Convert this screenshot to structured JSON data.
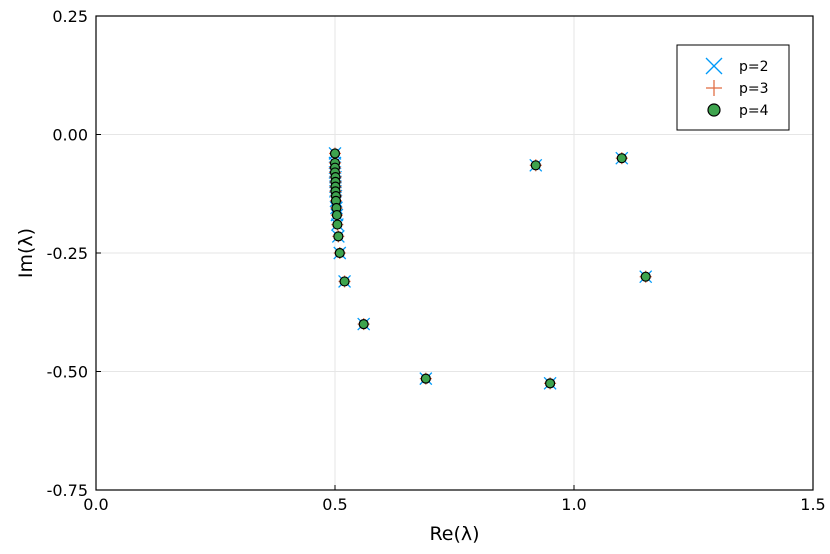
{
  "chart_data": {
    "type": "scatter",
    "title": "",
    "xlabel": "Re(λ)",
    "ylabel": "Im(λ)",
    "xlim": [
      0.0,
      1.5
    ],
    "ylim": [
      -0.75,
      0.25
    ],
    "x_ticks": [
      0.0,
      0.5,
      1.0,
      1.5
    ],
    "x_tick_labels": [
      "0.0",
      "0.5",
      "1.0",
      "1.5"
    ],
    "y_ticks": [
      0.25,
      0.0,
      -0.25,
      -0.5,
      -0.75
    ],
    "y_tick_labels": [
      "0.25",
      "0.00",
      "-0.25",
      "-0.50",
      "-0.75"
    ],
    "grid": true,
    "legend_position": "top-right",
    "series": [
      {
        "name": "p=2",
        "marker": "x",
        "color": "#009af9",
        "points": [
          [
            0.5,
            -0.04
          ],
          [
            0.5,
            -0.06
          ],
          [
            0.5,
            -0.07
          ],
          [
            0.5,
            -0.08
          ],
          [
            0.501,
            -0.09
          ],
          [
            0.501,
            -0.1
          ],
          [
            0.501,
            -0.11
          ],
          [
            0.501,
            -0.12
          ],
          [
            0.502,
            -0.13
          ],
          [
            0.502,
            -0.14
          ],
          [
            0.503,
            -0.155
          ],
          [
            0.504,
            -0.17
          ],
          [
            0.505,
            -0.19
          ],
          [
            0.507,
            -0.215
          ],
          [
            0.51,
            -0.25
          ],
          [
            0.52,
            -0.31
          ],
          [
            0.56,
            -0.4
          ],
          [
            0.69,
            -0.515
          ],
          [
            0.92,
            -0.065
          ],
          [
            0.95,
            -0.525
          ],
          [
            1.1,
            -0.05
          ],
          [
            1.15,
            -0.3
          ]
        ]
      },
      {
        "name": "p=3",
        "marker": "+",
        "color": "#e26f46",
        "points": [
          [
            0.5,
            -0.04
          ],
          [
            0.5,
            -0.06
          ],
          [
            0.5,
            -0.07
          ],
          [
            0.5,
            -0.08
          ],
          [
            0.501,
            -0.09
          ],
          [
            0.501,
            -0.1
          ],
          [
            0.501,
            -0.11
          ],
          [
            0.501,
            -0.12
          ],
          [
            0.502,
            -0.13
          ],
          [
            0.502,
            -0.14
          ],
          [
            0.503,
            -0.155
          ],
          [
            0.504,
            -0.17
          ],
          [
            0.505,
            -0.19
          ],
          [
            0.507,
            -0.215
          ],
          [
            0.51,
            -0.25
          ],
          [
            0.52,
            -0.31
          ],
          [
            0.56,
            -0.4
          ],
          [
            0.69,
            -0.515
          ],
          [
            0.92,
            -0.065
          ],
          [
            0.95,
            -0.525
          ],
          [
            1.1,
            -0.05
          ],
          [
            1.15,
            -0.3
          ]
        ]
      },
      {
        "name": "p=4",
        "marker": "circle",
        "color": "#3ea44e",
        "points": [
          [
            0.5,
            -0.04
          ],
          [
            0.5,
            -0.06
          ],
          [
            0.5,
            -0.07
          ],
          [
            0.5,
            -0.08
          ],
          [
            0.501,
            -0.09
          ],
          [
            0.501,
            -0.1
          ],
          [
            0.501,
            -0.11
          ],
          [
            0.501,
            -0.12
          ],
          [
            0.502,
            -0.13
          ],
          [
            0.502,
            -0.14
          ],
          [
            0.503,
            -0.155
          ],
          [
            0.504,
            -0.17
          ],
          [
            0.505,
            -0.19
          ],
          [
            0.507,
            -0.215
          ],
          [
            0.51,
            -0.25
          ],
          [
            0.52,
            -0.31
          ],
          [
            0.56,
            -0.4
          ],
          [
            0.69,
            -0.515
          ],
          [
            0.92,
            -0.065
          ],
          [
            0.95,
            -0.525
          ],
          [
            1.1,
            -0.05
          ],
          [
            1.15,
            -0.3
          ]
        ]
      }
    ]
  }
}
